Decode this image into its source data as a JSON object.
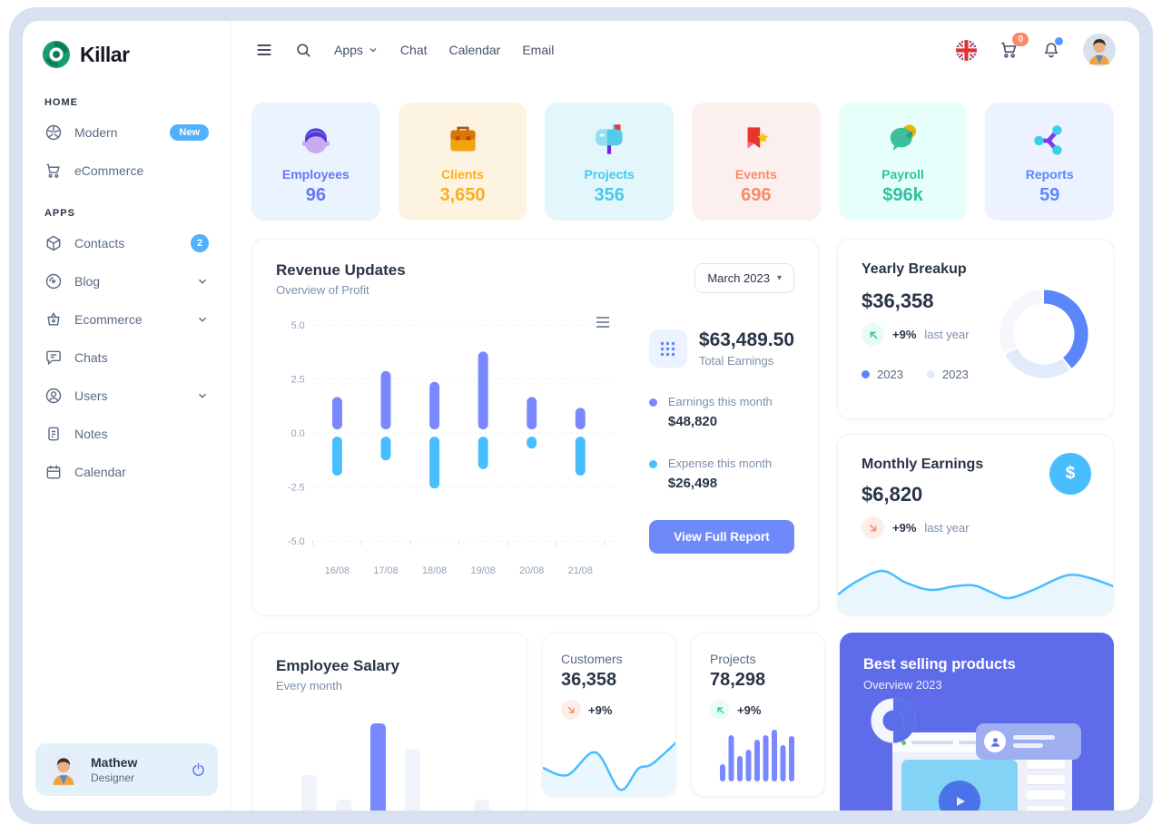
{
  "glyphs": {
    "caret": "▾",
    "dollar": "$"
  },
  "sidebar": {
    "logo_text": "Killar",
    "sections": [
      {
        "label": "HOME",
        "items": [
          {
            "icon": "aperture-icon",
            "label": "Modern",
            "badge": "New"
          },
          {
            "icon": "cart-icon",
            "label": "eCommerce"
          }
        ]
      },
      {
        "label": "APPS",
        "items": [
          {
            "icon": "package-icon",
            "label": "Contacts",
            "badge": "2"
          },
          {
            "icon": "disc-icon",
            "label": "Blog",
            "chevron": true
          },
          {
            "icon": "basket-icon",
            "label": "Ecommerce",
            "chevron": true
          },
          {
            "icon": "message-icon",
            "label": "Chats"
          },
          {
            "icon": "user-circle-icon",
            "label": "Users",
            "chevron": true
          },
          {
            "icon": "note-icon",
            "label": "Notes"
          },
          {
            "icon": "calendar-icon",
            "label": "Calendar"
          }
        ]
      }
    ],
    "user": {
      "name": "Mathew",
      "role": "Designer"
    }
  },
  "header": {
    "nav": [
      "Apps",
      "Chat",
      "Calendar",
      "Email"
    ],
    "cart_badge": "0"
  },
  "stats": [
    {
      "label": "Employees",
      "value": "96",
      "color": "#6577F3",
      "bg": "#EBF3FE"
    },
    {
      "label": "Clients",
      "value": "3,650",
      "color": "#FFAE1F",
      "bg": "#FDF3E1"
    },
    {
      "label": "Projects",
      "value": "356",
      "color": "#46CAEB",
      "bg": "#E3F6FC"
    },
    {
      "label": "Events",
      "value": "696",
      "color": "#FA896B",
      "bg": "#FBF0ED"
    },
    {
      "label": "Payroll",
      "value": "$96k",
      "color": "#2FC2A0",
      "bg": "#E6FFFA"
    },
    {
      "label": "Reports",
      "value": "59",
      "color": "#5D87FF",
      "bg": "#ECF2FF"
    }
  ],
  "revenue": {
    "title": "Revenue Updates",
    "subtitle": "Overview of Profit",
    "period": "March 2023",
    "total": "$63,489.50",
    "total_label": "Total Earnings",
    "legend": [
      {
        "label": "Earnings this month",
        "value": "$48,820",
        "color": "#7988FF"
      },
      {
        "label": "Expense this month",
        "value": "$26,498",
        "color": "#49BEFF"
      }
    ],
    "button": "View Full Report"
  },
  "yearly": {
    "title": "Yearly Breakup",
    "value": "$36,358",
    "delta": "+9%",
    "delta_label": "last year",
    "legend": [
      "2023",
      "2023"
    ]
  },
  "monthly": {
    "title": "Monthly Earnings",
    "value": "$6,820",
    "delta": "+9%",
    "delta_label": "last year"
  },
  "salary": {
    "title": "Employee Salary",
    "subtitle": "Every month"
  },
  "customers": {
    "label": "Customers",
    "value": "36,358",
    "delta": "+9%"
  },
  "projects_mini": {
    "label": "Projects",
    "value": "78,298",
    "delta": "+9%"
  },
  "best": {
    "title": "Best selling products",
    "subtitle": "Overview 2023"
  },
  "chart_data": [
    {
      "type": "bar",
      "title": "Revenue Updates",
      "categories": [
        "16/08",
        "17/08",
        "18/08",
        "19/08",
        "20/08",
        "21/08"
      ],
      "series": [
        {
          "name": "Earnings this month",
          "color": "#7988FF",
          "values": [
            1.5,
            2.7,
            2.2,
            3.6,
            1.5,
            1.0
          ]
        },
        {
          "name": "Expense this month",
          "color": "#49BEFF",
          "values": [
            -1.8,
            -1.1,
            -2.4,
            -1.5,
            -0.55,
            -1.8
          ]
        }
      ],
      "ylim": [
        -5,
        5
      ],
      "ytick_labels": [
        "5.0",
        "2.5",
        "0.0",
        "-2.5",
        "-5.0"
      ],
      "grid": true,
      "legend_position": "right"
    },
    {
      "type": "pie",
      "title": "Yearly Breakup",
      "labels": [
        "2023",
        "2023",
        ""
      ],
      "values": [
        40,
        28,
        32
      ],
      "colors": [
        "#5B86FB",
        "#E2EBFC",
        "#F5F7FC"
      ],
      "donut": true
    },
    {
      "type": "area",
      "title": "Monthly Earnings",
      "x": [
        0,
        20,
        49,
        75,
        102,
        128,
        150,
        170,
        188,
        215,
        252,
        278,
        306
      ],
      "y": [
        58,
        44,
        32,
        45,
        53,
        49,
        48,
        56,
        62,
        53,
        37,
        40,
        50
      ],
      "color": "#49BEFF"
    },
    {
      "type": "bar",
      "title": "Employee Salary",
      "values": [
        67,
        40,
        124,
        96,
        28,
        40
      ],
      "highlight_index": 2,
      "bar_color": "#F0F4FA",
      "highlight_color": "#7988FF"
    },
    {
      "type": "line",
      "title": "Customers",
      "x": [
        0,
        27,
        58,
        85,
        105,
        120,
        148
      ],
      "y": [
        54,
        62,
        37,
        78,
        55,
        50,
        25
      ],
      "color": "#49BEFF"
    },
    {
      "type": "bar",
      "title": "Projects",
      "values": [
        19,
        51,
        28,
        35,
        46,
        51,
        57,
        40,
        50
      ],
      "bar_color": "#7988FF"
    }
  ]
}
